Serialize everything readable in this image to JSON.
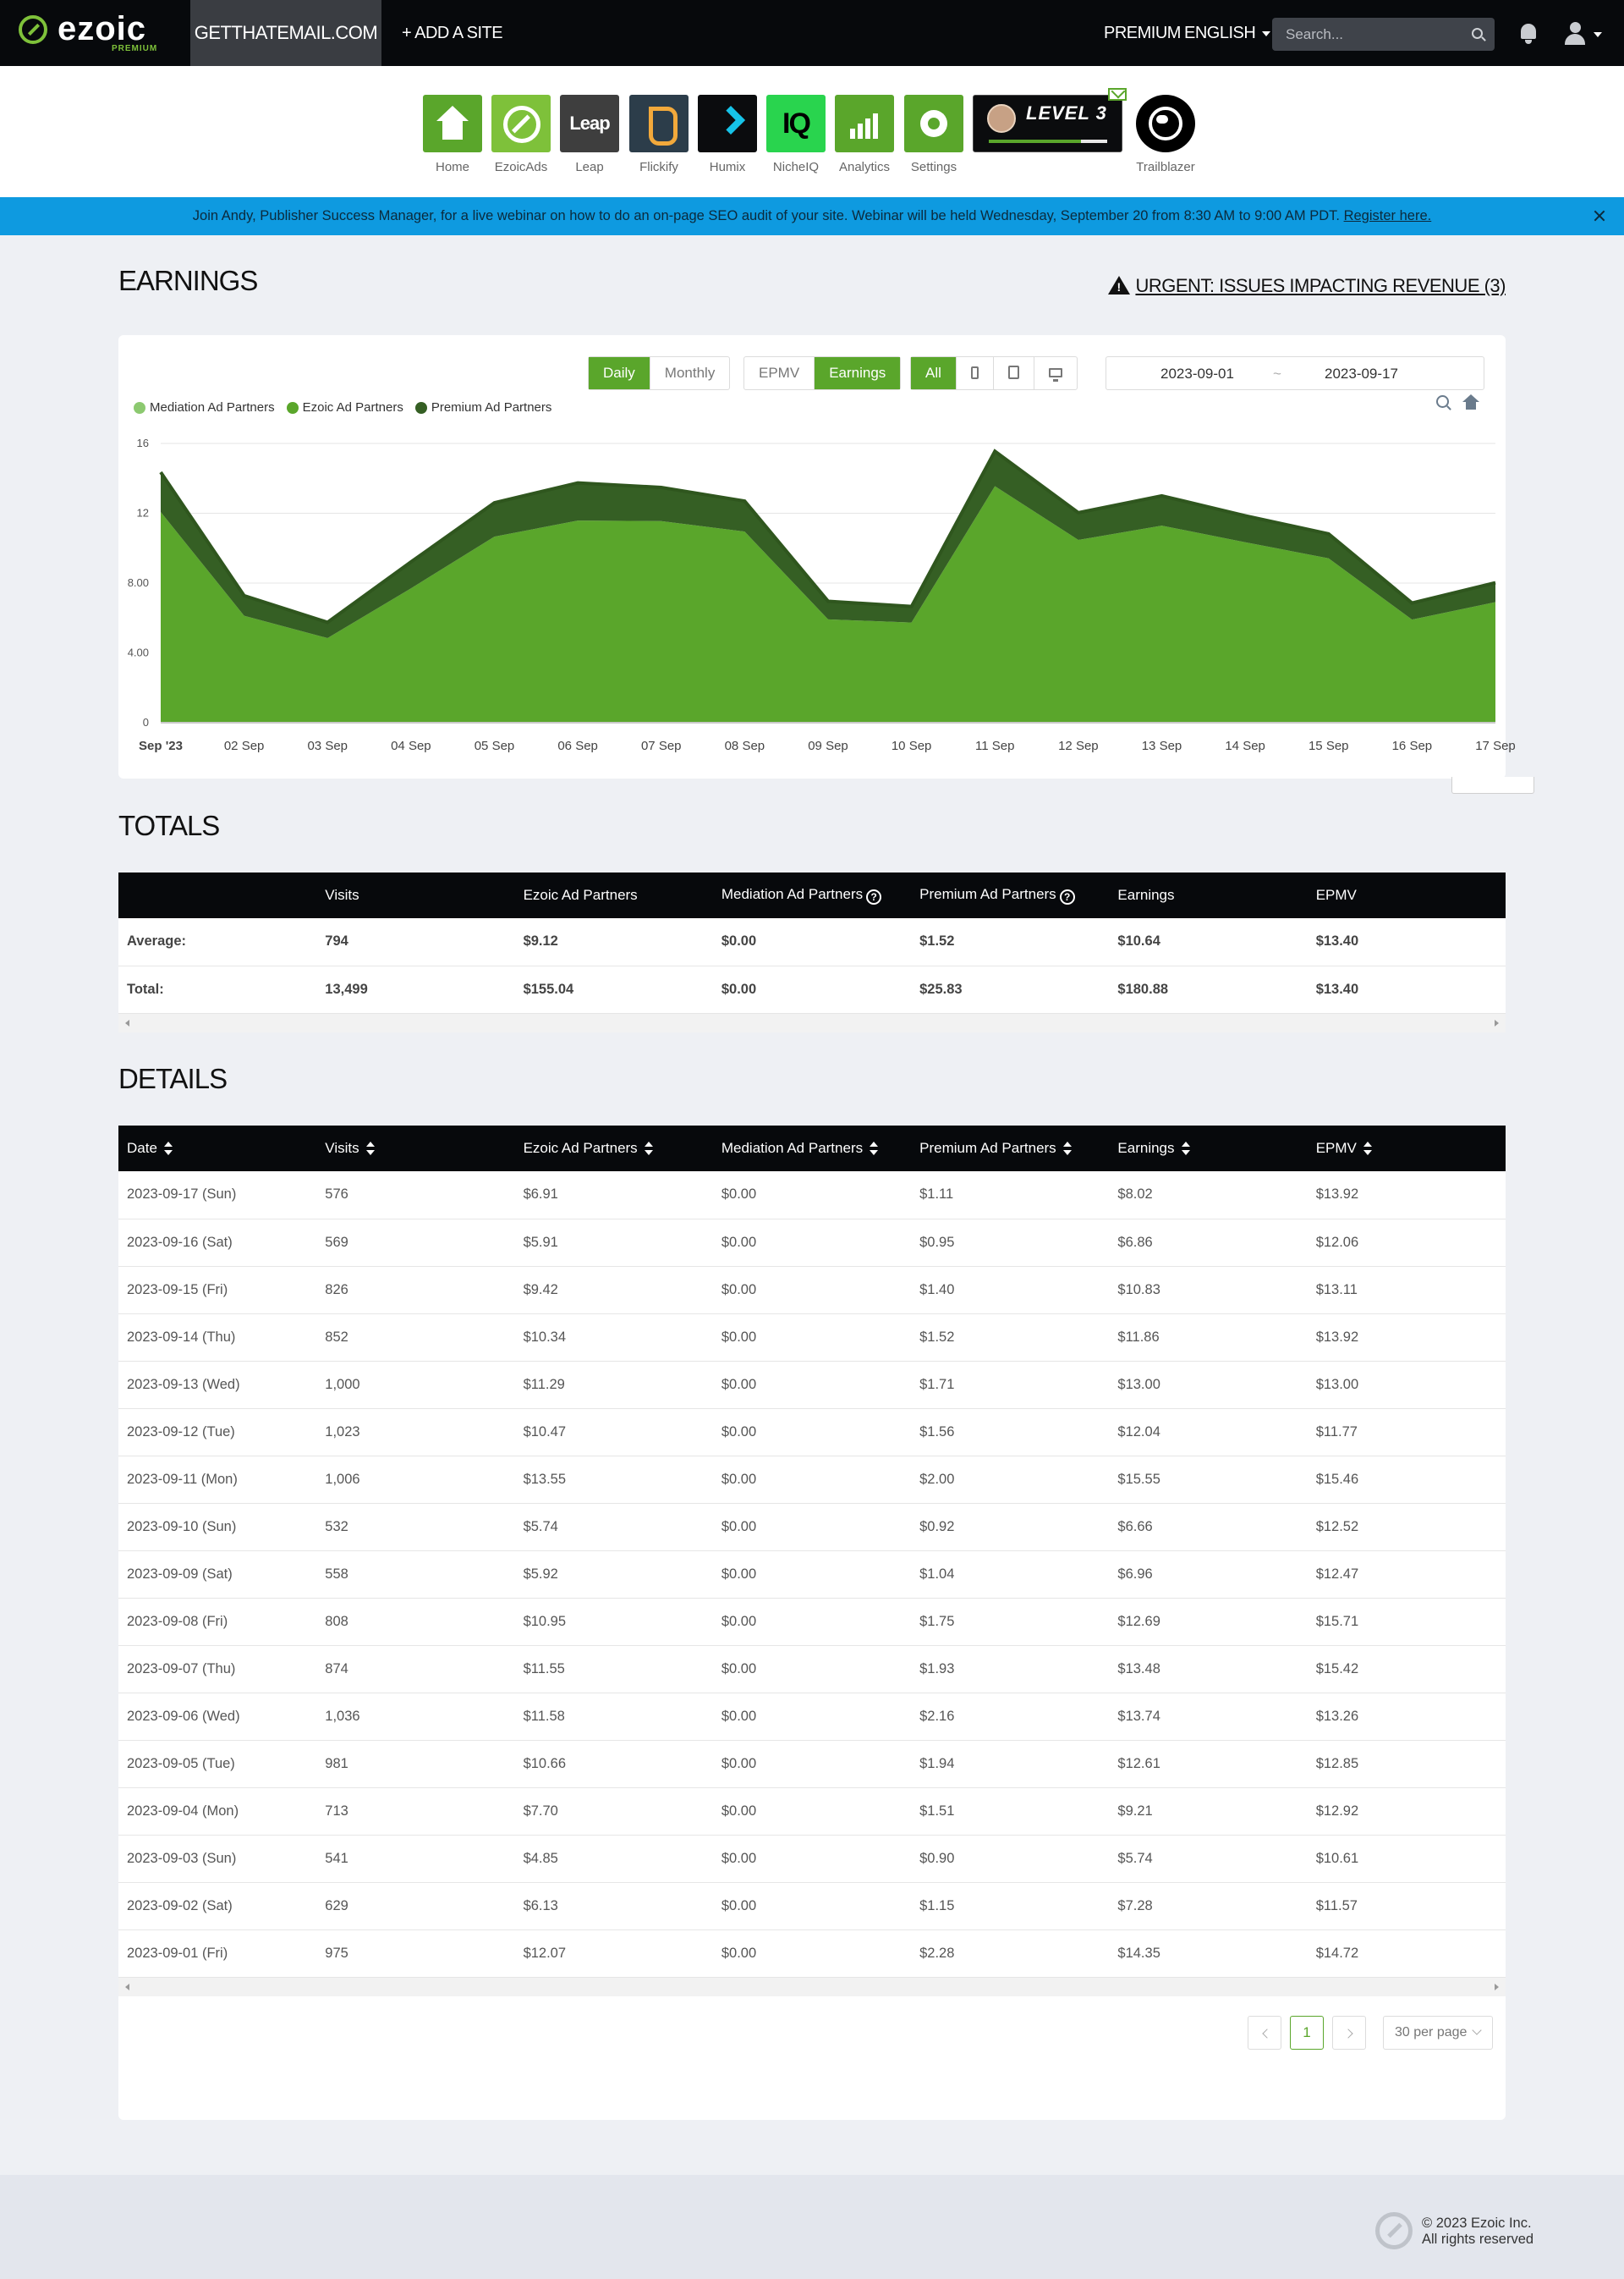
{
  "topbar": {
    "logo_text": "ezoic",
    "logo_sub": "PREMIUM",
    "site": "GETTHATEMAIL.COM",
    "add_site": "+ ADD A SITE",
    "premium": "PREMIUM",
    "language": "ENGLISH",
    "search_placeholder": "Search..."
  },
  "apps": [
    {
      "label": "Home",
      "icon": "home-icon"
    },
    {
      "label": "EzoicAds",
      "icon": "ezoicads-icon"
    },
    {
      "label": "Leap",
      "icon": "leap-icon",
      "tile_text": "Leap"
    },
    {
      "label": "Flickify",
      "icon": "flickify-icon"
    },
    {
      "label": "Humix",
      "icon": "humix-icon"
    },
    {
      "label": "NicheIQ",
      "icon": "nicheiq-icon",
      "tile_text": "IQ"
    },
    {
      "label": "Analytics",
      "icon": "analytics-icon"
    },
    {
      "label": "Settings",
      "icon": "settings-icon"
    }
  ],
  "level_badge": {
    "text": "LEVEL 3",
    "progress": 0.78
  },
  "trailblazer": {
    "label": "Trailblazer"
  },
  "banner": {
    "text": "Join Andy, Publisher Success Manager, for a live webinar on how to do an on-page SEO audit of your site. Webinar will be held Wednesday, September 20 from 8:30 AM to 9:00 AM PDT.",
    "link": "Register here."
  },
  "earnings": {
    "title": "EARNINGS",
    "urgent": "URGENT: ISSUES IMPACTING REVENUE (3)",
    "period_buttons": [
      "Daily",
      "Monthly"
    ],
    "period_active": "Daily",
    "metric_buttons": [
      "EPMV",
      "Earnings"
    ],
    "metric_active": "Earnings",
    "device_all": "All",
    "date_from": "2023-09-01",
    "date_sep": "~",
    "date_to": "2023-09-17"
  },
  "chart_data": {
    "type": "area",
    "stacked": true,
    "title": "",
    "xlabel": "",
    "ylabel": "",
    "ylim": [
      0,
      16
    ],
    "y_ticks": [
      "0",
      "4.00",
      "8.00",
      "12",
      "16"
    ],
    "grid": true,
    "legend_position": "top-left",
    "categories": [
      "Sep '23",
      "02 Sep",
      "03 Sep",
      "04 Sep",
      "05 Sep",
      "06 Sep",
      "07 Sep",
      "08 Sep",
      "09 Sep",
      "10 Sep",
      "11 Sep",
      "12 Sep",
      "13 Sep",
      "14 Sep",
      "15 Sep",
      "16 Sep",
      "17 Sep"
    ],
    "series": [
      {
        "name": "Mediation Ad Partners",
        "color": "#8cc970",
        "values": [
          0,
          0,
          0,
          0,
          0,
          0,
          0,
          0,
          0,
          0,
          0,
          0,
          0,
          0,
          0,
          0,
          0
        ]
      },
      {
        "name": "Ezoic Ad Partners",
        "color": "#5aa62b",
        "values": [
          12.07,
          6.13,
          4.85,
          7.7,
          10.66,
          11.58,
          11.55,
          10.95,
          5.92,
          5.74,
          13.55,
          10.47,
          11.29,
          10.34,
          9.42,
          5.91,
          6.91
        ]
      },
      {
        "name": "Premium Ad Partners",
        "color": "#355f24",
        "values": [
          2.28,
          1.15,
          0.9,
          1.51,
          1.94,
          2.16,
          1.93,
          1.75,
          1.04,
          0.92,
          2.0,
          1.56,
          1.71,
          1.52,
          1.4,
          0.95,
          1.11
        ]
      }
    ]
  },
  "totals": {
    "title": "TOTALS",
    "headers": [
      "",
      "Visits",
      "Ezoic Ad Partners",
      "Mediation Ad Partners",
      "Premium Ad Partners",
      "Earnings",
      "EPMV"
    ],
    "rows": [
      [
        "Average:",
        "794",
        "$9.12",
        "$0.00",
        "$1.52",
        "$10.64",
        "$13.40"
      ],
      [
        "Total:",
        "13,499",
        "$155.04",
        "$0.00",
        "$25.83",
        "$180.88",
        "$13.40"
      ]
    ]
  },
  "details": {
    "title": "DETAILS",
    "headers": [
      "Date",
      "Visits",
      "Ezoic Ad Partners",
      "Mediation Ad Partners",
      "Premium Ad Partners",
      "Earnings",
      "EPMV"
    ],
    "rows": [
      [
        "2023-09-17 (Sun)",
        "576",
        "$6.91",
        "$0.00",
        "$1.11",
        "$8.02",
        "$13.92"
      ],
      [
        "2023-09-16 (Sat)",
        "569",
        "$5.91",
        "$0.00",
        "$0.95",
        "$6.86",
        "$12.06"
      ],
      [
        "2023-09-15 (Fri)",
        "826",
        "$9.42",
        "$0.00",
        "$1.40",
        "$10.83",
        "$13.11"
      ],
      [
        "2023-09-14 (Thu)",
        "852",
        "$10.34",
        "$0.00",
        "$1.52",
        "$11.86",
        "$13.92"
      ],
      [
        "2023-09-13 (Wed)",
        "1,000",
        "$11.29",
        "$0.00",
        "$1.71",
        "$13.00",
        "$13.00"
      ],
      [
        "2023-09-12 (Tue)",
        "1,023",
        "$10.47",
        "$0.00",
        "$1.56",
        "$12.04",
        "$11.77"
      ],
      [
        "2023-09-11 (Mon)",
        "1,006",
        "$13.55",
        "$0.00",
        "$2.00",
        "$15.55",
        "$15.46"
      ],
      [
        "2023-09-10 (Sun)",
        "532",
        "$5.74",
        "$0.00",
        "$0.92",
        "$6.66",
        "$12.52"
      ],
      [
        "2023-09-09 (Sat)",
        "558",
        "$5.92",
        "$0.00",
        "$1.04",
        "$6.96",
        "$12.47"
      ],
      [
        "2023-09-08 (Fri)",
        "808",
        "$10.95",
        "$0.00",
        "$1.75",
        "$12.69",
        "$15.71"
      ],
      [
        "2023-09-07 (Thu)",
        "874",
        "$11.55",
        "$0.00",
        "$1.93",
        "$13.48",
        "$15.42"
      ],
      [
        "2023-09-06 (Wed)",
        "1,036",
        "$11.58",
        "$0.00",
        "$2.16",
        "$13.74",
        "$13.26"
      ],
      [
        "2023-09-05 (Tue)",
        "981",
        "$10.66",
        "$0.00",
        "$1.94",
        "$12.61",
        "$12.85"
      ],
      [
        "2023-09-04 (Mon)",
        "713",
        "$7.70",
        "$0.00",
        "$1.51",
        "$9.21",
        "$12.92"
      ],
      [
        "2023-09-03 (Sun)",
        "541",
        "$4.85",
        "$0.00",
        "$0.90",
        "$5.74",
        "$10.61"
      ],
      [
        "2023-09-02 (Sat)",
        "629",
        "$6.13",
        "$0.00",
        "$1.15",
        "$7.28",
        "$11.57"
      ],
      [
        "2023-09-01 (Fri)",
        "975",
        "$12.07",
        "$0.00",
        "$2.28",
        "$14.35",
        "$14.72"
      ]
    ],
    "pagination": {
      "current": "1",
      "per_page": "30 per page"
    }
  },
  "footer": {
    "copyright": "© 2023 Ezoic Inc.",
    "rights": "All rights reserved"
  }
}
